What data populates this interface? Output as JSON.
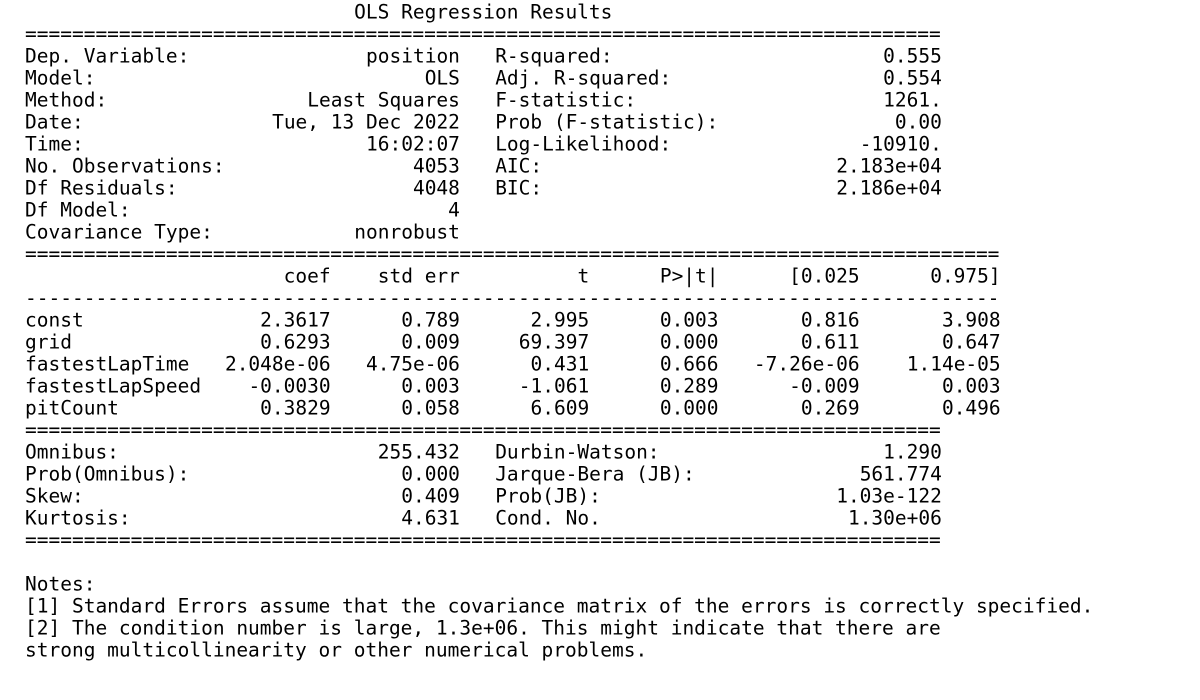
{
  "title": "OLS Regression Results",
  "rule_double": "==============================================================================",
  "rule_double_wide": "===================================================================================",
  "rule_single": "-----------------------------------------------------------------------------------",
  "summary": {
    "rows": [
      [
        "Dep. Variable:",
        "position",
        "R-squared:",
        "0.555"
      ],
      [
        "Model:",
        "OLS",
        "Adj. R-squared:",
        "0.554"
      ],
      [
        "Method:",
        "Least Squares",
        "F-statistic:",
        "1261."
      ],
      [
        "Date:",
        "Tue, 13 Dec 2022",
        "Prob (F-statistic):",
        "0.00"
      ],
      [
        "Time:",
        "16:02:07",
        "Log-Likelihood:",
        "-10910."
      ],
      [
        "No. Observations:",
        "4053",
        "AIC:",
        "2.183e+04"
      ],
      [
        "Df Residuals:",
        "4048",
        "BIC:",
        "2.186e+04"
      ],
      [
        "Df Model:",
        "4"
      ],
      [
        "Covariance Type:",
        "nonrobust"
      ]
    ]
  },
  "coefficients": {
    "header": [
      "coef",
      "std err",
      "t",
      "P>|t|",
      "[0.025",
      "0.975]"
    ],
    "rows": [
      [
        "const",
        "2.3617",
        "0.789",
        "2.995",
        "0.003",
        "0.816",
        "3.908"
      ],
      [
        "grid",
        "0.6293",
        "0.009",
        "69.397",
        "0.000",
        "0.611",
        "0.647"
      ],
      [
        "fastestLapTime",
        "2.048e-06",
        "4.75e-06",
        "0.431",
        "0.666",
        "-7.26e-06",
        "1.14e-05"
      ],
      [
        "fastestLapSpeed",
        "-0.0030",
        "0.003",
        "-1.061",
        "0.289",
        "-0.009",
        "0.003"
      ],
      [
        "pitCount",
        "0.3829",
        "0.058",
        "6.609",
        "0.000",
        "0.269",
        "0.496"
      ]
    ]
  },
  "diagnostics": {
    "rows": [
      [
        "Omnibus:",
        "255.432",
        "Durbin-Watson:",
        "1.290"
      ],
      [
        "Prob(Omnibus):",
        "0.000",
        "Jarque-Bera (JB):",
        "561.774"
      ],
      [
        "Skew:",
        "0.409",
        "Prob(JB):",
        "1.03e-122"
      ],
      [
        "Kurtosis:",
        "4.631",
        "Cond. No.",
        "1.30e+06"
      ]
    ]
  },
  "notes": {
    "title": "Notes:",
    "lines": [
      "[1] Standard Errors assume that the covariance matrix of the errors is correctly specified.",
      "[2] The condition number is large, 1.3e+06. This might indicate that there are",
      "strong multicollinearity or other numerical problems."
    ]
  }
}
